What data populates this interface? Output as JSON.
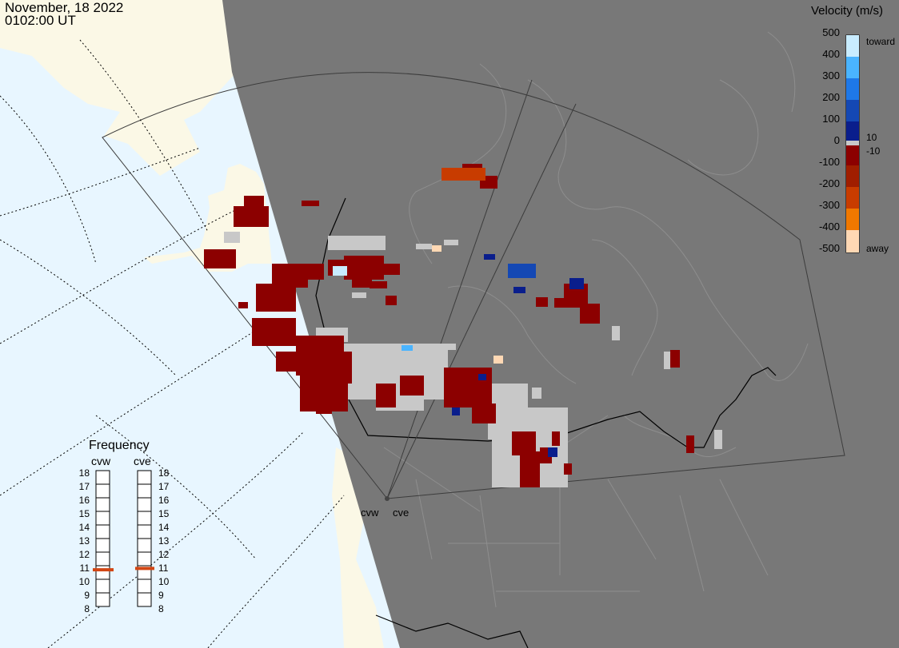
{
  "header": {
    "date": "November, 18 2022",
    "time": "0102:00 UT"
  },
  "velocity_legend": {
    "title": "Velocity (m/s)",
    "tick_labels": [
      "500",
      "400",
      "300",
      "200",
      "100",
      "0",
      "-100",
      "-200",
      "-300",
      "-400",
      "-500"
    ],
    "threshold_pos": "10",
    "threshold_neg": "-10",
    "toward_label": "toward",
    "away_label": "away",
    "colors": [
      "#c8ecff",
      "#4ab4ff",
      "#1e78e8",
      "#1448b4",
      "#0a1e8c",
      "#00006e",
      "#c8c8c8",
      "#8c0000",
      "#a01e00",
      "#c83c00",
      "#f07800",
      "#ffaa28",
      "#ffd8b4"
    ]
  },
  "frequency_panel": {
    "title": "Frequency",
    "radars": [
      "cvw",
      "cve"
    ],
    "ticks": [
      "18",
      "17",
      "16",
      "15",
      "14",
      "13",
      "12",
      "11",
      "10",
      "9",
      "8"
    ],
    "cvw_value_mhz": 10.7,
    "cve_value_mhz": 10.8,
    "marker_color": "#d24614"
  },
  "sites": {
    "cvw": "cvw",
    "cve": "cve"
  },
  "colors": {
    "ocean": "#e8f6ff",
    "land": "#fbf8e6",
    "night": "#787878",
    "groundscatter": "#c8c8c8",
    "neg_velocity": "#8c0000"
  }
}
